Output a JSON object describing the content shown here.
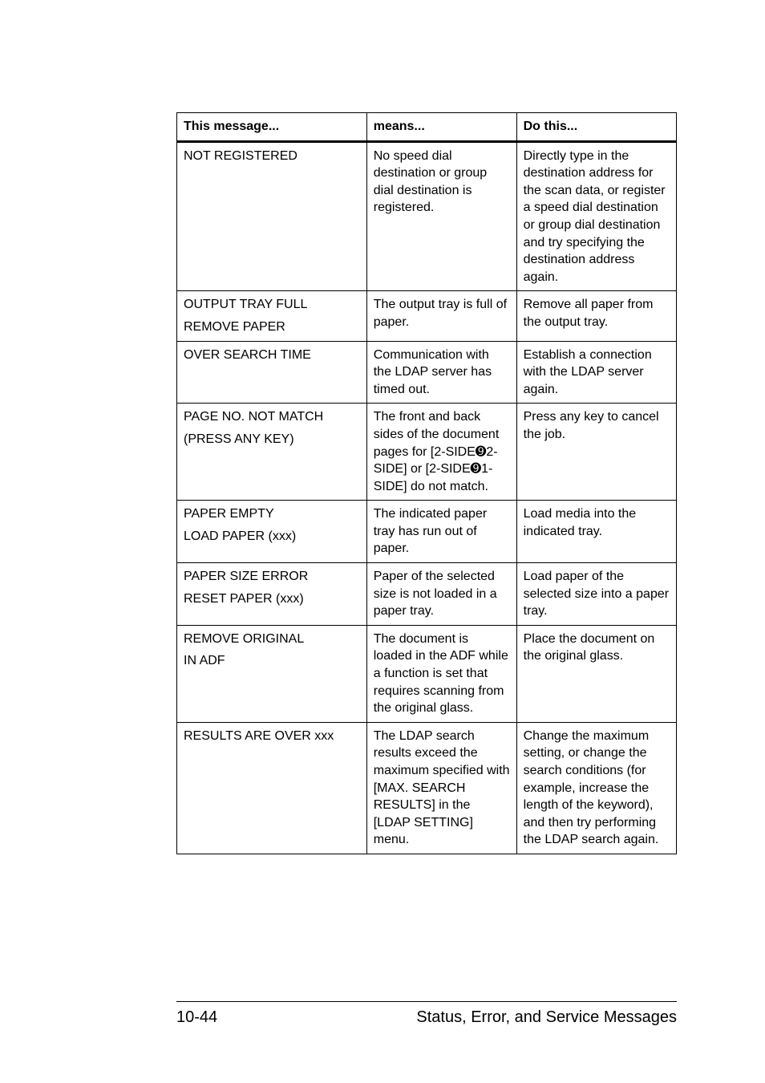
{
  "table": {
    "headers": {
      "c1": "This message...",
      "c2": "means...",
      "c3": "Do this..."
    },
    "rows": [
      {
        "c1": "NOT REGISTERED",
        "c2": "No speed dial destination or group dial destination is registered.",
        "c3": "Directly type in the destination address for the scan data, or register a speed dial destination or group dial destination and try specifying the destination address again."
      },
      {
        "c1": "OUTPUT TRAY FULL\nREMOVE PAPER",
        "c2": "The output tray is full of paper.",
        "c3": "Remove all paper from the output tray."
      },
      {
        "c1": "OVER SEARCH TIME",
        "c2": "Communication with the LDAP server has timed out.",
        "c3": "Establish a connection with the LDAP server again."
      },
      {
        "c1": "PAGE NO. NOT MATCH\n(PRESS ANY KEY)",
        "c2": "The front and back sides of the document pages for [2-SIDE➒2-SIDE] or [2-SIDE➒1-SIDE] do not match.",
        "c3": "Press any key to cancel the job."
      },
      {
        "c1": "PAPER EMPTY\nLOAD PAPER (xxx)",
        "c2": "The indicated paper tray has run out of paper.",
        "c3": "Load media into the indicated tray."
      },
      {
        "c1": "PAPER SIZE ERROR\nRESET PAPER (xxx)",
        "c2": "Paper of the selected size is not loaded in a paper tray.",
        "c3": "Load paper of the selected size into a paper tray."
      },
      {
        "c1": "REMOVE ORIGINAL\nIN ADF",
        "c2": "The document is loaded in the ADF while a function is set that requires scanning from the original glass.",
        "c3": "Place the document on the original glass."
      },
      {
        "c1": "RESULTS ARE OVER xxx",
        "c2": "The LDAP search results exceed the maximum specified with [MAX. SEARCH RESULTS] in the [LDAP SETTING] menu.",
        "c3": "Change the maximum setting, or change the search conditions (for example, increase the length of the keyword), and then try performing the LDAP search again."
      }
    ]
  },
  "footer": {
    "pageNumber": "10-44",
    "title": "Status, Error, and Service Messages"
  }
}
